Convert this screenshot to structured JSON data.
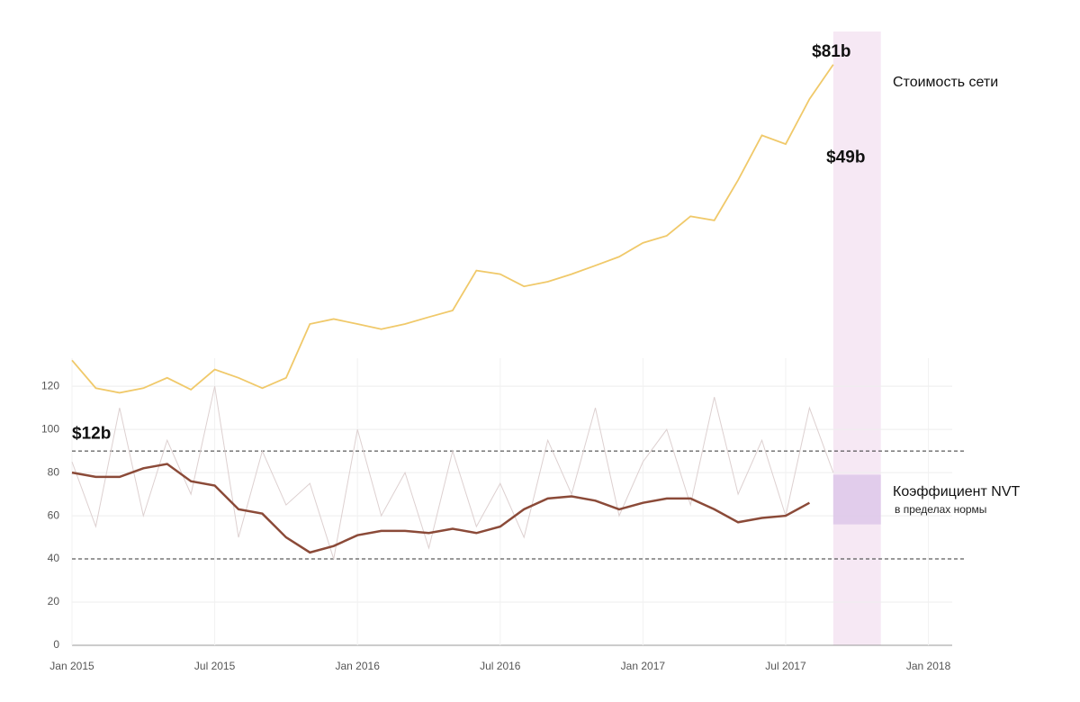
{
  "chart_data": {
    "type": "line",
    "xlim": [
      "2015-01",
      "2018-02"
    ],
    "xticks": [
      {
        "value": "2015-01",
        "label": "Jan 2015"
      },
      {
        "value": "2015-07",
        "label": "Jul 2015"
      },
      {
        "value": "2016-01",
        "label": "Jan 2016"
      },
      {
        "value": "2016-07",
        "label": "Jul 2016"
      },
      {
        "value": "2017-01",
        "label": "Jan 2017"
      },
      {
        "value": "2017-07",
        "label": "Jul 2017"
      },
      {
        "value": "2018-01",
        "label": "Jan 2018"
      }
    ],
    "ylim": [
      0,
      133
    ],
    "yticks": [
      0,
      20,
      40,
      60,
      80,
      100,
      120
    ],
    "y2lim": [
      2,
      100
    ],
    "y2_log": true,
    "grid": true,
    "x": [
      "2015-01",
      "2015-02",
      "2015-03",
      "2015-04",
      "2015-05",
      "2015-06",
      "2015-07",
      "2015-08",
      "2015-09",
      "2015-10",
      "2015-11",
      "2015-12",
      "2016-01",
      "2016-02",
      "2016-03",
      "2016-04",
      "2016-05",
      "2016-06",
      "2016-07",
      "2016-08",
      "2016-09",
      "2016-10",
      "2016-11",
      "2016-12",
      "2017-01",
      "2017-02",
      "2017-03",
      "2017-04",
      "2017-05",
      "2017-06",
      "2017-07",
      "2017-08",
      "2017-09"
    ],
    "series": [
      {
        "name": "Стоимость сети",
        "color": "#f0c96a",
        "axis": "y2",
        "values": [
          12.3,
          10.3,
          10,
          10.3,
          11,
          10.2,
          11.6,
          11,
          10.3,
          11,
          15.5,
          16,
          15.5,
          15,
          15.5,
          16.2,
          16.9,
          21.8,
          21.3,
          19.7,
          20.3,
          21.3,
          22.5,
          23.8,
          26,
          27.2,
          30.8,
          30,
          38.8,
          51.6,
          48.8,
          65,
          81
        ]
      },
      {
        "name": "Коэффициент NVT",
        "color": "#ddd0d0",
        "values": [
          85,
          55,
          110,
          60,
          95,
          70,
          120,
          50,
          90,
          65,
          75,
          40,
          100,
          60,
          80,
          45,
          90,
          55,
          75,
          50,
          95,
          70,
          110,
          60,
          85,
          100,
          65,
          115,
          70,
          95,
          60,
          110,
          80
        ]
      },
      {
        "name": "Коэффициент NVT",
        "color": "#8b4a38",
        "values": [
          80,
          78,
          78,
          82,
          84,
          76,
          74,
          63,
          61,
          50,
          43,
          46,
          51,
          53,
          53,
          52,
          54,
          52,
          55,
          63,
          68,
          69,
          67,
          63,
          66,
          68,
          68,
          63,
          57,
          59,
          60,
          66,
          null
        ]
      }
    ],
    "reference_lines": [
      90,
      40
    ],
    "highlight": {
      "from": "2017-09",
      "to": "2017-11"
    },
    "band": {
      "from": "2017-09",
      "to": "2017-11",
      "range": [
        56,
        79
      ],
      "label": "в пределах нормы"
    },
    "annotations": [
      {
        "x": "2015-01",
        "value": 12,
        "label": "$12b"
      },
      {
        "x": "2017-09",
        "value": 81,
        "label": "$81b"
      },
      {
        "x": "2017-09",
        "value": 49,
        "label": "$49b"
      }
    ]
  }
}
